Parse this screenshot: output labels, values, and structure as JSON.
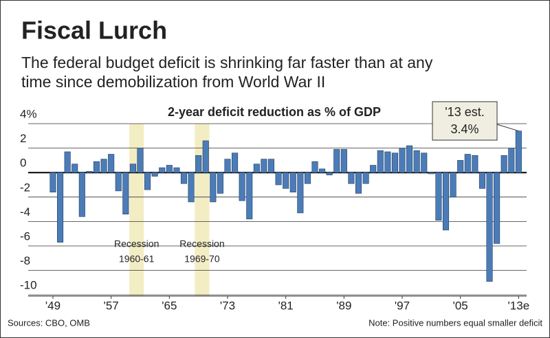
{
  "chart_data": {
    "type": "bar",
    "title": "Fiscal Lurch",
    "subtitle_lines": [
      "The federal budget deficit is shrinking far faster than at any",
      "time since demobilization from World War II"
    ],
    "axis_title": "2-year deficit reduction as % of GDP",
    "x": [
      1949,
      1950,
      1951,
      1952,
      1953,
      1954,
      1955,
      1956,
      1957,
      1958,
      1959,
      1960,
      1961,
      1962,
      1963,
      1964,
      1965,
      1966,
      1967,
      1968,
      1969,
      1970,
      1971,
      1972,
      1973,
      1974,
      1975,
      1976,
      1977,
      1978,
      1979,
      1980,
      1981,
      1982,
      1983,
      1984,
      1985,
      1986,
      1987,
      1988,
      1989,
      1990,
      1991,
      1992,
      1993,
      1994,
      1995,
      1996,
      1997,
      1998,
      1999,
      2000,
      2001,
      2002,
      2003,
      2004,
      2005,
      2006,
      2007,
      2008,
      2009,
      2010,
      2011,
      2012,
      2013
    ],
    "values": [
      -1.6,
      -5.7,
      1.7,
      0.7,
      -3.6,
      0.1,
      0.9,
      1.1,
      1.5,
      -1.5,
      -3.4,
      0.7,
      2.0,
      -1.4,
      -0.3,
      0.4,
      0.6,
      0.4,
      -0.9,
      -2.4,
      1.4,
      2.6,
      -2.4,
      -1.7,
      1.1,
      1.6,
      -2.3,
      -3.8,
      0.7,
      1.1,
      1.1,
      -1.0,
      -1.3,
      -1.6,
      -3.3,
      -0.9,
      0.9,
      0.3,
      -0.2,
      1.9,
      1.9,
      -0.9,
      -1.7,
      -0.9,
      0.6,
      1.8,
      1.7,
      1.6,
      2.0,
      2.2,
      1.8,
      1.6,
      -0.1,
      -3.9,
      -4.7,
      -2.0,
      1.0,
      1.5,
      1.4,
      -1.3,
      -8.9,
      -5.8,
      1.4,
      2.0,
      3.4
    ],
    "color": "#4b7cb8",
    "xlim": [
      1945.6,
      2014.1
    ],
    "xticks": [
      {
        "value": 1949,
        "label": "'49"
      },
      {
        "value": 1957,
        "label": "'57"
      },
      {
        "value": 1965,
        "label": "'65"
      },
      {
        "value": 1973,
        "label": "'73"
      },
      {
        "value": 1981,
        "label": "'81"
      },
      {
        "value": 1989,
        "label": "'89"
      },
      {
        "value": 1997,
        "label": "'97"
      },
      {
        "value": 2005,
        "label": "'05"
      },
      {
        "value": 2013,
        "label": "'13e"
      }
    ],
    "ylim": [
      -10.1,
      4
    ],
    "yticks": [
      {
        "value": 4,
        "label": "4%"
      },
      2,
      0,
      -2,
      -4,
      -6,
      -8,
      -10
    ],
    "grid": true,
    "recessions": [
      {
        "label": "Recession",
        "period": "1960-61",
        "start": 1960,
        "end": 1961
      },
      {
        "label": "Recession",
        "period": "1969-70",
        "start": 1969,
        "end": 1970
      }
    ],
    "callout": {
      "title": "'13 est.",
      "value_label": "3.4%"
    },
    "source": "Sources: CBO, OMB",
    "note": "Note: Positive numbers equal smaller deficit"
  }
}
